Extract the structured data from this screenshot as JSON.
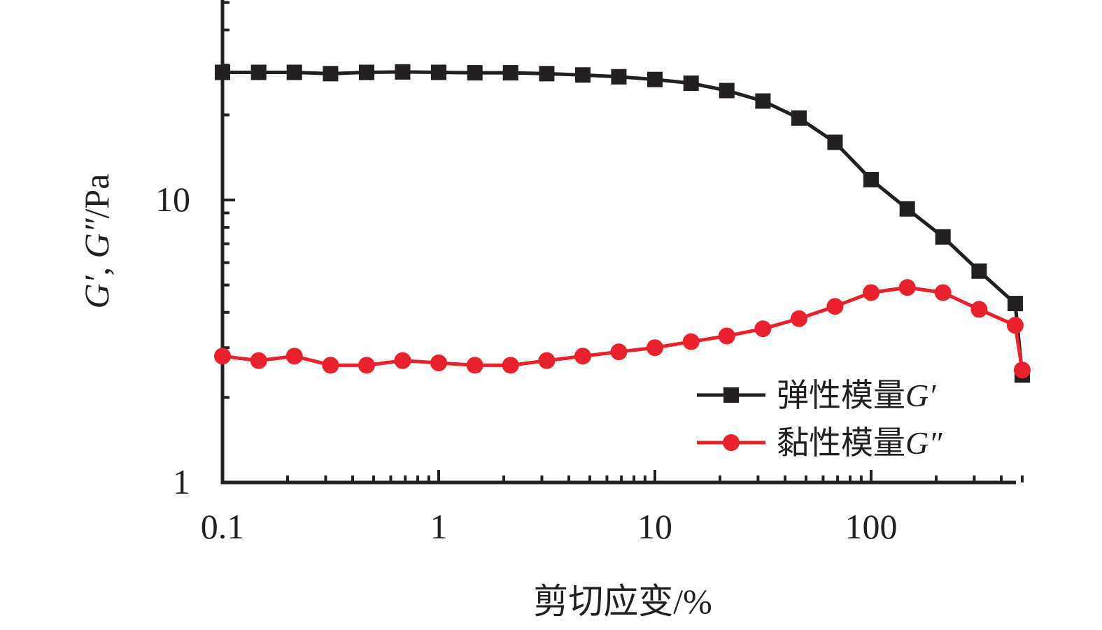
{
  "chart_data": {
    "type": "line",
    "xlabel": "剪切应变/%",
    "ylabel": "G′, G″/Pa",
    "x_scale": "log",
    "y_scale": "log",
    "xlim": [
      0.1,
      500
    ],
    "ylim": [
      1,
      50
    ],
    "x_ticks": [
      {
        "value": 0.1,
        "label": "0.1"
      },
      {
        "value": 1,
        "label": "1"
      },
      {
        "value": 10,
        "label": "10"
      },
      {
        "value": 100,
        "label": "100"
      }
    ],
    "y_ticks": [
      {
        "value": 1,
        "label": "1"
      },
      {
        "value": 10,
        "label": "10"
      }
    ],
    "grid": false,
    "legend_position": "lower-right",
    "x": [
      0.1,
      0.147,
      0.215,
      0.316,
      0.464,
      0.681,
      1.0,
      1.47,
      2.15,
      3.16,
      4.64,
      6.81,
      10,
      14.7,
      21.5,
      31.6,
      46.4,
      68.1,
      100,
      147,
      215,
      316,
      464,
      500
    ],
    "series": [
      {
        "name": "弹性模量G′",
        "color": "#231f20",
        "marker": "square",
        "x": [
          0.1,
          0.147,
          0.215,
          0.316,
          0.464,
          0.681,
          1.0,
          1.47,
          2.15,
          3.16,
          4.64,
          6.81,
          10,
          14.7,
          21.5,
          31.6,
          46.4,
          68.1,
          100,
          147,
          215,
          316,
          464,
          500
        ],
        "values": [
          28.3,
          28.3,
          28.3,
          28.0,
          28.3,
          28.4,
          28.3,
          28.2,
          28.2,
          28.0,
          27.7,
          27.3,
          26.7,
          25.9,
          24.4,
          22.4,
          19.5,
          16.0,
          11.8,
          9.3,
          7.4,
          5.6,
          4.3,
          2.4
        ]
      },
      {
        "name": "黏性模量G″",
        "color": "#e8222c",
        "marker": "circle",
        "x": [
          0.1,
          0.147,
          0.215,
          0.316,
          0.464,
          0.681,
          1.0,
          1.47,
          2.15,
          3.16,
          4.64,
          6.81,
          10,
          14.7,
          21.5,
          31.6,
          46.4,
          68.1,
          100,
          147,
          215,
          316,
          464,
          500
        ],
        "values": [
          2.8,
          2.7,
          2.8,
          2.6,
          2.6,
          2.7,
          2.65,
          2.6,
          2.6,
          2.7,
          2.8,
          2.9,
          3.0,
          3.15,
          3.3,
          3.5,
          3.8,
          4.2,
          4.7,
          4.9,
          4.7,
          4.1,
          3.6,
          2.5
        ]
      }
    ]
  }
}
